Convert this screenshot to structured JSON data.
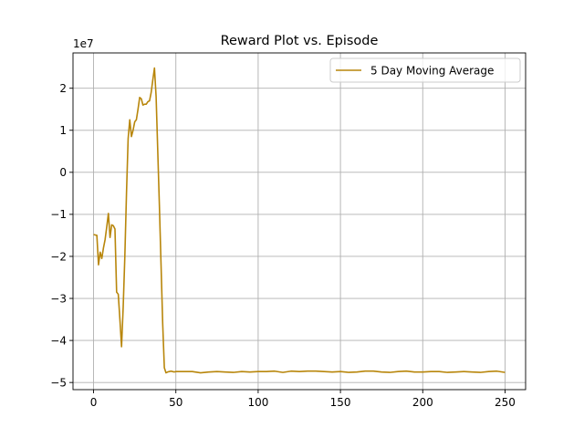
{
  "chart_data": {
    "type": "line",
    "title": "Reward Plot vs. Episode",
    "xlabel": "",
    "ylabel": "",
    "y_offset_label": "1e7",
    "xlim": [
      -12.5,
      262.5
    ],
    "ylim": [
      -5.17,
      2.84
    ],
    "x_ticks": [
      0,
      50,
      100,
      150,
      200,
      250
    ],
    "x_tick_labels": [
      "0",
      "50",
      "100",
      "150",
      "200",
      "250"
    ],
    "y_ticks": [
      2,
      1,
      0,
      -1,
      -2,
      -3,
      -4,
      -5
    ],
    "y_tick_labels": [
      "2",
      "1",
      "0",
      "−1",
      "−2",
      "−3",
      "−4",
      "−5"
    ],
    "grid": true,
    "legend_position": "top-right",
    "series": [
      {
        "name": "5 Day Moving Average",
        "color": "#b8860b",
        "x": [
          0,
          1,
          2,
          3,
          4,
          5,
          6,
          7,
          8,
          9,
          10,
          11,
          12,
          13,
          14,
          15,
          16,
          17,
          18,
          19,
          20,
          21,
          22,
          23,
          24,
          25,
          26,
          27,
          28,
          29,
          30,
          31,
          32,
          33,
          34,
          35,
          36,
          37,
          38,
          39,
          40,
          41,
          42,
          43,
          44,
          45,
          46,
          47,
          48,
          49,
          50,
          55,
          60,
          65,
          70,
          75,
          80,
          85,
          90,
          95,
          100,
          105,
          110,
          115,
          120,
          125,
          130,
          135,
          140,
          145,
          150,
          155,
          160,
          165,
          170,
          175,
          180,
          185,
          190,
          195,
          200,
          205,
          210,
          215,
          220,
          225,
          230,
          235,
          240,
          245,
          250
        ],
        "y": [
          -1.48,
          -1.49,
          -1.5,
          -2.2,
          -1.9,
          -2.05,
          -1.8,
          -1.6,
          -1.3,
          -0.98,
          -1.55,
          -1.25,
          -1.27,
          -1.35,
          -2.85,
          -2.9,
          -3.5,
          -4.15,
          -3.2,
          -2.0,
          -0.5,
          0.8,
          1.25,
          0.85,
          1.0,
          1.2,
          1.25,
          1.5,
          1.78,
          1.75,
          1.6,
          1.62,
          1.62,
          1.68,
          1.7,
          1.9,
          2.2,
          2.48,
          1.8,
          0.5,
          -0.8,
          -2.2,
          -3.6,
          -4.65,
          -4.77,
          -4.75,
          -4.74,
          -4.73,
          -4.74,
          -4.75,
          -4.74,
          -4.74,
          -4.74,
          -4.77,
          -4.75,
          -4.74,
          -4.75,
          -4.76,
          -4.74,
          -4.75,
          -4.74,
          -4.74,
          -4.73,
          -4.76,
          -4.73,
          -4.74,
          -4.73,
          -4.73,
          -4.74,
          -4.75,
          -4.74,
          -4.76,
          -4.75,
          -4.73,
          -4.73,
          -4.75,
          -4.76,
          -4.74,
          -4.73,
          -4.75,
          -4.75,
          -4.74,
          -4.74,
          -4.76,
          -4.75,
          -4.74,
          -4.75,
          -4.76,
          -4.74,
          -4.73,
          -4.76
        ]
      }
    ]
  }
}
